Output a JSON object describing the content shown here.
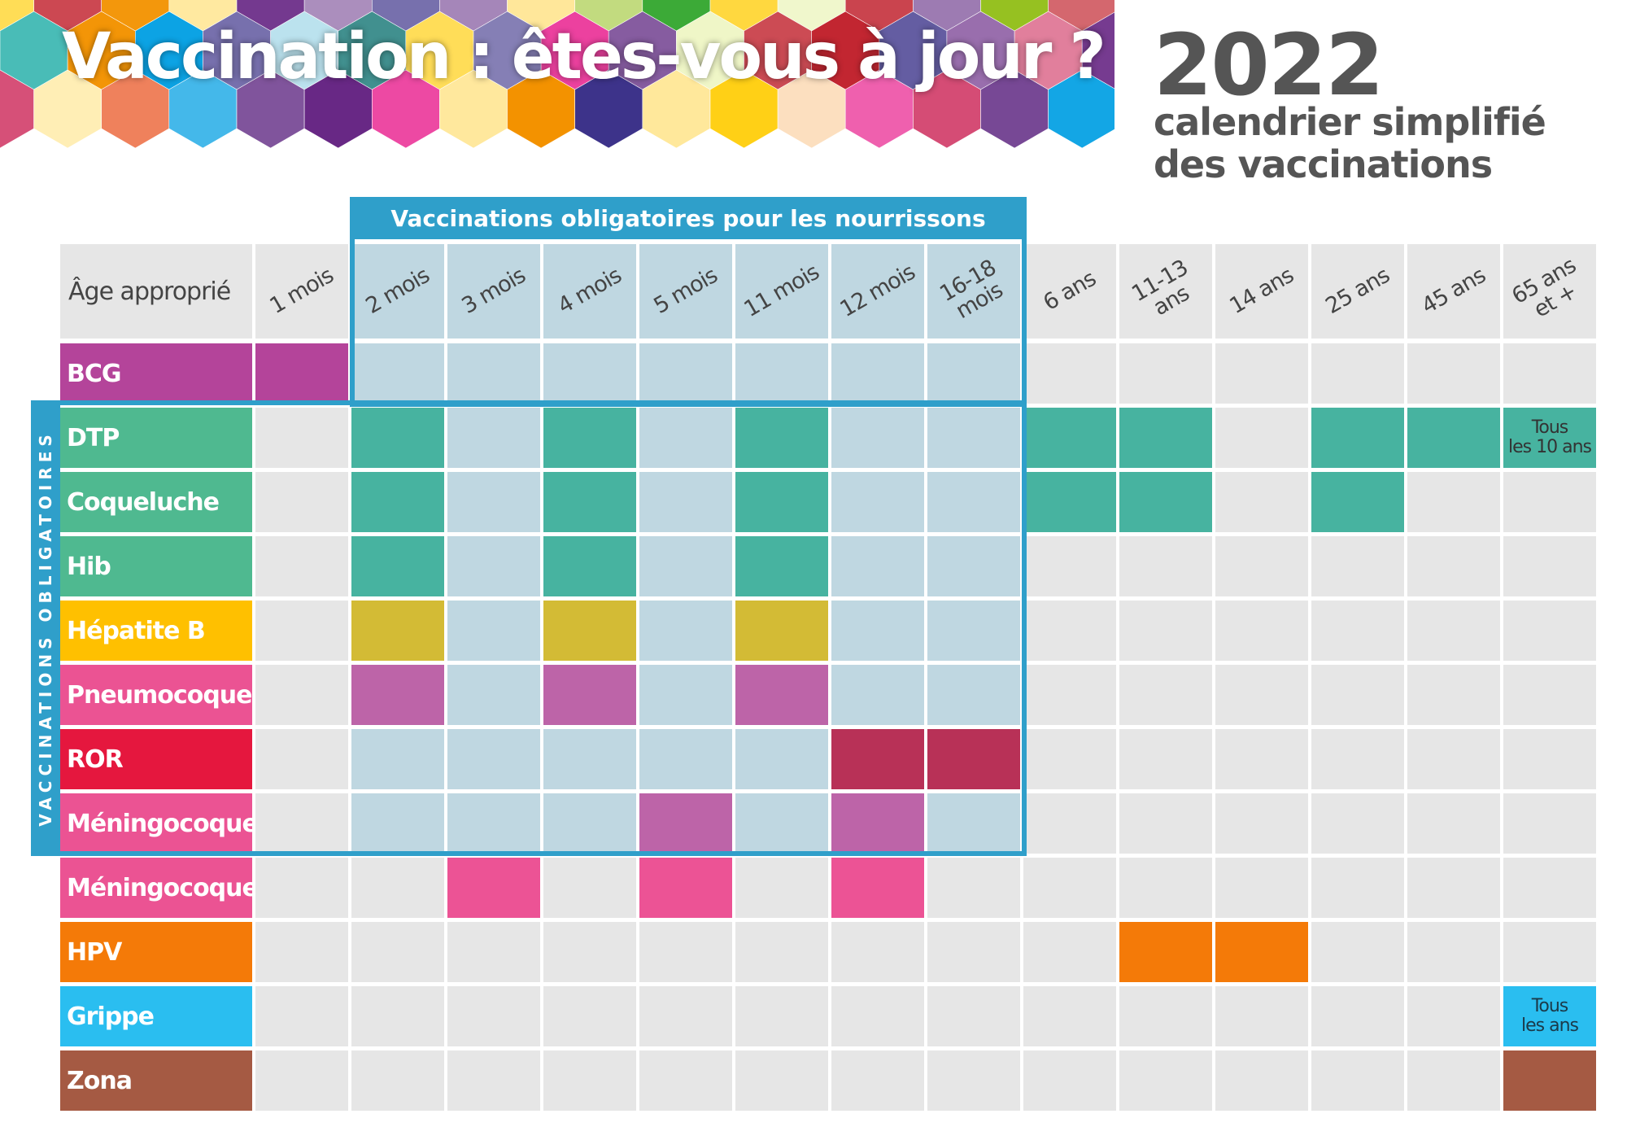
{
  "header": {
    "title": "Vaccination : êtes-vous à jour ?",
    "year": "2022",
    "subtitle_line1": "calendrier simplifié",
    "subtitle_line2": "des vaccinations"
  },
  "mandatory_box": {
    "title": "Vaccinations obligatoires pour les nourrissons",
    "side_label": "VACCINATIONS OBLIGATOIRES",
    "color": "#2f9fca"
  },
  "table": {
    "age_header": "Âge approprié",
    "ages": [
      "1 mois",
      "2 mois",
      "3 mois",
      "4 mois",
      "5 mois",
      "11 mois",
      "12 mois",
      "16-18\nmois",
      "6 ans",
      "11-13\nans",
      "14 ans",
      "25 ans",
      "45 ans",
      "65 ans\net +"
    ],
    "vaccines": [
      {
        "name": "BCG",
        "color": "#b4449a",
        "doses": [
          0
        ]
      },
      {
        "name": "DTP",
        "color": "#4fb990",
        "doses": [
          1,
          3,
          5,
          8,
          9,
          11,
          12,
          13
        ],
        "dose_color": "#47b3a0"
      },
      {
        "name": "Coqueluche",
        "color": "#4fb990",
        "doses": [
          1,
          3,
          5,
          8,
          9,
          11
        ],
        "dose_color": "#47b3a0"
      },
      {
        "name": "Hib",
        "color": "#4fb990",
        "doses": [
          1,
          3,
          5
        ],
        "dose_color": "#47b3a0"
      },
      {
        "name": "Hépatite B",
        "color": "#ffc000",
        "doses": [
          1,
          3,
          5
        ],
        "dose_color": "#d3bb35"
      },
      {
        "name": "Pneumocoque",
        "color": "#eb5393",
        "doses": [
          1,
          3,
          5
        ],
        "dose_color": "#bd64a8"
      },
      {
        "name": "ROR",
        "color": "#e5173e",
        "doses": [
          6,
          7
        ],
        "dose_color": "#b83157"
      },
      {
        "name": "Méningocoque C",
        "color": "#eb5393",
        "doses": [
          4,
          6
        ],
        "dose_color": "#bd64a8"
      },
      {
        "name": "Méningocoque B",
        "color": "#eb5393",
        "doses": [
          2,
          4,
          6
        ],
        "dose_color": "#ec5395"
      },
      {
        "name": "HPV",
        "color": "#f47a08",
        "doses": [
          9,
          10
        ],
        "dose_color": "#f47a08"
      },
      {
        "name": "Grippe",
        "color": "#2abef0",
        "doses": [
          13
        ],
        "dose_color": "#2abef0"
      },
      {
        "name": "Zona",
        "color": "#a55a43",
        "doses": [
          13
        ],
        "dose_color": "#a55a43"
      }
    ],
    "notes": [
      {
        "row": 1,
        "col": 13,
        "line1": "Tous",
        "line2": "les 10 ans"
      },
      {
        "row": 10,
        "col": 13,
        "line1": "Tous",
        "line2": "les ans"
      }
    ]
  }
}
